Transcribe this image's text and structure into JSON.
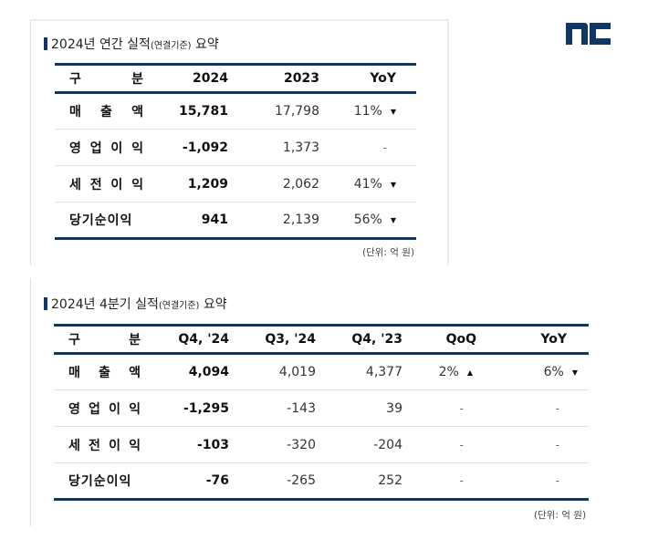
{
  "logo": {
    "name": "NC",
    "color": "#0e3666"
  },
  "colors": {
    "accent": "#0e3666",
    "row_divider": "#e3e3e3"
  },
  "annual": {
    "title_main": "2024년 연간 실적",
    "title_sub": "(연결기준)",
    "title_end": " 요약",
    "headers": [
      "구",
      "분",
      "2024",
      "2023",
      "YoY"
    ],
    "rows": [
      {
        "label_parts": [
          "매",
          "출",
          "액"
        ],
        "v2024": "15,781",
        "v2023": "17,798",
        "yoy": "11%",
        "yoy_dir": "down"
      },
      {
        "label_parts": [
          "영",
          "업",
          "이",
          "익"
        ],
        "v2024": "-1,092",
        "v2023": "1,373",
        "yoy": "-",
        "yoy_dir": ""
      },
      {
        "label_parts": [
          "세",
          "전",
          "이",
          "익"
        ],
        "v2024": "1,209",
        "v2023": "2,062",
        "yoy": "41%",
        "yoy_dir": "down"
      },
      {
        "label_parts": [
          "당기순이익"
        ],
        "v2024": "941",
        "v2023": "2,139",
        "yoy": "56%",
        "yoy_dir": "down"
      }
    ],
    "unit": "(단위: 억 원)"
  },
  "quarterly": {
    "title_main": "2024년 4분기 실적",
    "title_sub": "(연결기준)",
    "title_end": " 요약",
    "headers": [
      "구",
      "분",
      "Q4, '24",
      "Q3, '24",
      "Q4, '23",
      "QoQ",
      "YoY"
    ],
    "rows": [
      {
        "label_parts": [
          "매",
          "출",
          "액"
        ],
        "q4_24": "4,094",
        "q3_24": "4,019",
        "q4_23": "4,377",
        "qoq": "2%",
        "qoq_dir": "up",
        "yoy": "6%",
        "yoy_dir": "down"
      },
      {
        "label_parts": [
          "영",
          "업",
          "이",
          "익"
        ],
        "q4_24": "-1,295",
        "q3_24": "-143",
        "q4_23": "39",
        "qoq": "-",
        "qoq_dir": "",
        "yoy": "-",
        "yoy_dir": ""
      },
      {
        "label_parts": [
          "세",
          "전",
          "이",
          "익"
        ],
        "q4_24": "-103",
        "q3_24": "-320",
        "q4_23": "-204",
        "qoq": "-",
        "qoq_dir": "",
        "yoy": "-",
        "yoy_dir": ""
      },
      {
        "label_parts": [
          "당기순이익"
        ],
        "q4_24": "-76",
        "q3_24": "-265",
        "q4_23": "252",
        "qoq": "-",
        "qoq_dir": "",
        "yoy": "-",
        "yoy_dir": ""
      }
    ],
    "unit": "(단위: 억 원)"
  },
  "icons": {
    "down": "▼",
    "up": "▲"
  }
}
